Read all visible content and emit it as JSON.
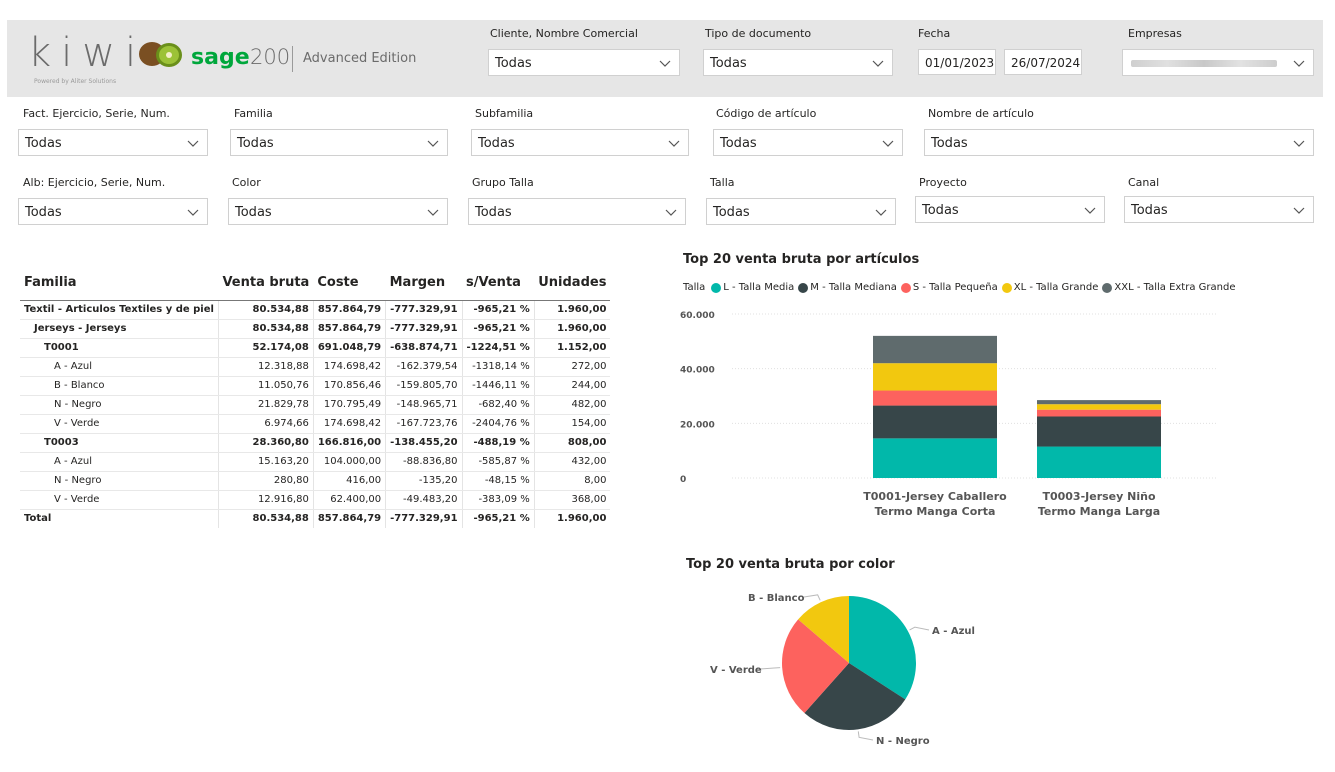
{
  "header": {
    "logo_text": "kiwi",
    "logo_tagline": "Powered by Aliter Solutions",
    "sage_brand": "sage",
    "sage_version": "200",
    "edition": "Advanced Edition"
  },
  "top_filters": [
    {
      "label": "Cliente, Nombre Comercial",
      "value": "Todas"
    },
    {
      "label": "Tipo de documento",
      "value": "Todas"
    }
  ],
  "date_filter": {
    "label": "Fecha",
    "from": "01/01/2023",
    "to": "26/07/2024"
  },
  "company_filter": {
    "label": "Empresas"
  },
  "filters_row1": [
    {
      "label": "Fact. Ejercicio, Serie, Num.",
      "value": "Todas"
    },
    {
      "label": "Familia",
      "value": "Todas"
    },
    {
      "label": "Subfamilia",
      "value": "Todas"
    },
    {
      "label": "Código de artículo",
      "value": "Todas"
    },
    {
      "label": "Nombre de artículo",
      "value": "Todas"
    }
  ],
  "filters_row2": [
    {
      "label": "Alb: Ejercicio, Serie, Num.",
      "value": "Todas"
    },
    {
      "label": "Color",
      "value": "Todas"
    },
    {
      "label": "Grupo Talla",
      "value": "Todas"
    },
    {
      "label": "Talla",
      "value": "Todas"
    },
    {
      "label": "Proyecto",
      "value": "Todas"
    },
    {
      "label": "Canal",
      "value": "Todas"
    }
  ],
  "matrix": {
    "headers": [
      "Familia",
      "Venta bruta",
      "Coste",
      "Margen",
      "s/Venta",
      "Unidades"
    ],
    "rows": [
      {
        "label": "Textil - Articulos Textiles y de piel",
        "level": 0,
        "bold": true,
        "values": [
          "80.534,88",
          "857.864,79",
          "-777.329,91",
          "-965,21 %",
          "1.960,00"
        ]
      },
      {
        "label": "Jerseys - Jerseys",
        "level": 1,
        "bold": true,
        "values": [
          "80.534,88",
          "857.864,79",
          "-777.329,91",
          "-965,21 %",
          "1.960,00"
        ]
      },
      {
        "label": "T0001",
        "level": 2,
        "bold": true,
        "values": [
          "52.174,08",
          "691.048,79",
          "-638.874,71",
          "-1224,51 %",
          "1.152,00"
        ]
      },
      {
        "label": "A - Azul",
        "level": 3,
        "bold": false,
        "values": [
          "12.318,88",
          "174.698,42",
          "-162.379,54",
          "-1318,14 %",
          "272,00"
        ]
      },
      {
        "label": "B - Blanco",
        "level": 3,
        "bold": false,
        "values": [
          "11.050,76",
          "170.856,46",
          "-159.805,70",
          "-1446,11 %",
          "244,00"
        ]
      },
      {
        "label": "N - Negro",
        "level": 3,
        "bold": false,
        "values": [
          "21.829,78",
          "170.795,49",
          "-148.965,71",
          "-682,40 %",
          "482,00"
        ]
      },
      {
        "label": "V - Verde",
        "level": 3,
        "bold": false,
        "values": [
          "6.974,66",
          "174.698,42",
          "-167.723,76",
          "-2404,76 %",
          "154,00"
        ]
      },
      {
        "label": "T0003",
        "level": 2,
        "bold": true,
        "values": [
          "28.360,80",
          "166.816,00",
          "-138.455,20",
          "-488,19 %",
          "808,00"
        ]
      },
      {
        "label": "A - Azul",
        "level": 3,
        "bold": false,
        "values": [
          "15.163,20",
          "104.000,00",
          "-88.836,80",
          "-585,87 %",
          "432,00"
        ]
      },
      {
        "label": "N - Negro",
        "level": 3,
        "bold": false,
        "values": [
          "280,80",
          "416,00",
          "-135,20",
          "-48,15 %",
          "8,00"
        ]
      },
      {
        "label": "V - Verde",
        "level": 3,
        "bold": false,
        "values": [
          "12.916,80",
          "62.400,00",
          "-49.483,20",
          "-383,09 %",
          "368,00"
        ]
      }
    ],
    "total": {
      "label": "Total",
      "values": [
        "80.534,88",
        "857.864,79",
        "-777.329,91",
        "-965,21 %",
        "1.960,00"
      ]
    }
  },
  "chart_data": [
    {
      "type": "bar",
      "stacked": true,
      "title": "Top 20 venta bruta por artículos",
      "legend_title": "Talla",
      "legend_position": "top-left",
      "categories": [
        "T0001-Jersey Caballero Termo Manga Corta",
        "T0003-Jersey Niño Termo Manga Larga"
      ],
      "category_lines": [
        [
          "T0001-Jersey Caballero",
          "Termo Manga Corta"
        ],
        [
          "T0003-Jersey Niño",
          "Termo Manga Larga"
        ]
      ],
      "series": [
        {
          "name": "L - Talla Media",
          "color": "#01b8aa",
          "values": [
            14500,
            11500
          ]
        },
        {
          "name": "M - Talla Mediana",
          "color": "#374649",
          "values": [
            12000,
            11000
          ]
        },
        {
          "name": "S - Talla Pequeña",
          "color": "#fd625e",
          "values": [
            5500,
            2500
          ]
        },
        {
          "name": "XL - Talla Grande",
          "color": "#f2c80f",
          "values": [
            10000,
            2000
          ]
        },
        {
          "name": "XXL - Talla Extra Grande",
          "color": "#5f6b6d",
          "values": [
            10000,
            1500
          ]
        }
      ],
      "yticks": [
        "0",
        "20.000",
        "40.000",
        "60.000"
      ],
      "ylim": [
        0,
        60000
      ],
      "grid": true
    },
    {
      "type": "pie",
      "title": "Top 20 venta bruta por color",
      "labels": [
        "A - Azul",
        "N - Negro",
        "V - Verde",
        "B - Blanco"
      ],
      "values": [
        27482.08,
        22110.58,
        19891.46,
        11050.76
      ],
      "colors": [
        "#01b8aa",
        "#374649",
        "#fd625e",
        "#f2c80f"
      ]
    }
  ]
}
